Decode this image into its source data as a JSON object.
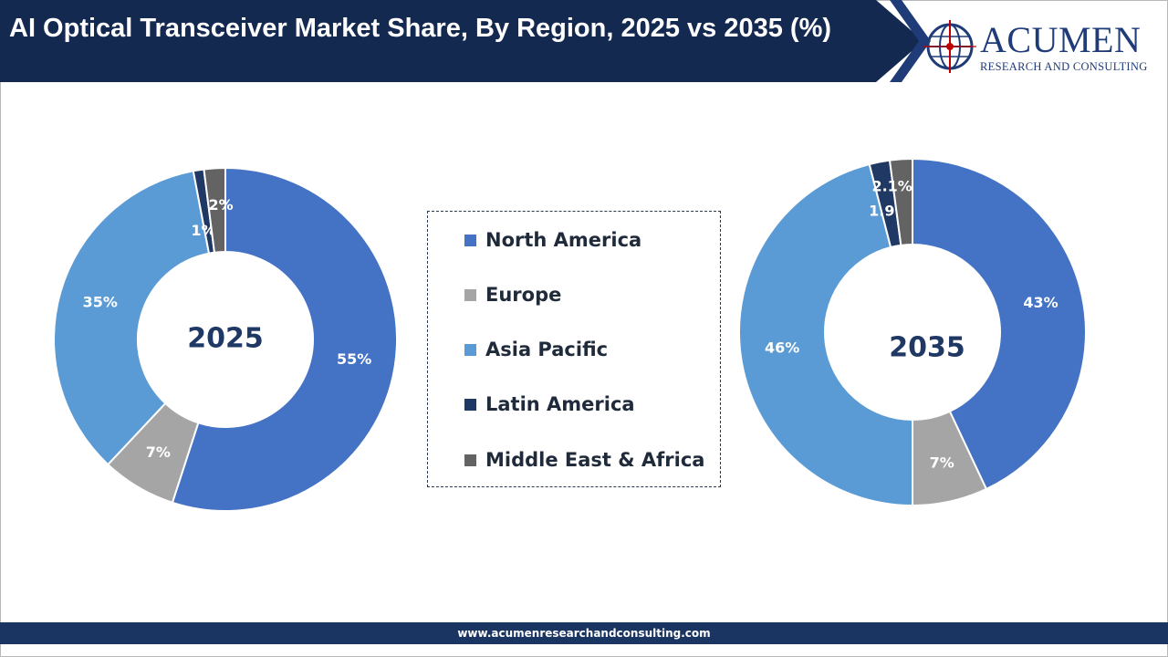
{
  "header": {
    "title": "AI Optical Transceiver Market Share, By Region, 2025 vs 2035 (%)"
  },
  "logo": {
    "name": "Acumen",
    "tagline": "RESEARCH AND CONSULTING",
    "icon": "globe-icon"
  },
  "colors": {
    "banner": "#14294f",
    "north_america": "#4472c4",
    "europe": "#a5a5a5",
    "asia_pacific": "#5b9bd5",
    "latin_america": "#203864",
    "middle_east_africa": "#636363",
    "center_label": "#1f3864"
  },
  "chart_data": [
    {
      "type": "pie",
      "style": "donut",
      "center_label": "2025",
      "categories": [
        "North America",
        "Europe",
        "Asia Pacific",
        "Latin America",
        "Middle East & Africa"
      ],
      "values": [
        55,
        7,
        35,
        1,
        2
      ],
      "data_labels": [
        "55%",
        "7%",
        "35%",
        "1%",
        "2%"
      ]
    },
    {
      "type": "pie",
      "style": "donut",
      "center_label": "2035",
      "categories": [
        "North America",
        "Europe",
        "Asia Pacific",
        "Latin America",
        "Middle East & Africa"
      ],
      "values": [
        43,
        7,
        46,
        1.9,
        2.1
      ],
      "data_labels": [
        "43%",
        "7%",
        "46%",
        "1.9%",
        "2.1%"
      ]
    }
  ],
  "legend": {
    "items": [
      {
        "label": "North America"
      },
      {
        "label": "Europe"
      },
      {
        "label": "Asia Pacific"
      },
      {
        "label": "Latin America"
      },
      {
        "label": "Middle East & Africa"
      }
    ]
  },
  "footer": {
    "url": "www.acumenresearchandconsulting.com"
  }
}
